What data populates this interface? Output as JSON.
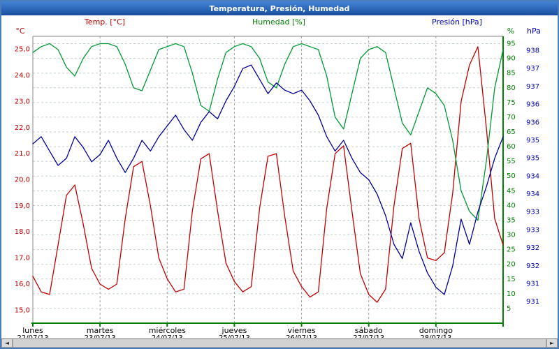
{
  "window": {
    "title": "Temperatura, Presión, Humedad"
  },
  "scrollbar": {
    "left_arrow": "◄",
    "right_arrow": "►"
  },
  "chart_data": {
    "type": "line",
    "title": "Temperatura, Presión, Humedad",
    "x_unit": "hours",
    "x_range": [
      0,
      168
    ],
    "step_hours": 3,
    "grid": "dashed",
    "legend_position": "top",
    "legend": [
      {
        "label": "Temp.  [°C]",
        "color": "#c00000"
      },
      {
        "label": "Humedad [%]",
        "color": "#008000"
      },
      {
        "label": "Presión [hPa]",
        "color": "#0000bb"
      }
    ],
    "axes": {
      "temp": {
        "unit": "°C",
        "color": "#c00000",
        "range": [
          14.5,
          25.5
        ],
        "ticks": [
          "25,0",
          "24,0",
          "23,0",
          "22,0",
          "21,0",
          "20,0",
          "19,0",
          "18,0",
          "17,0",
          "16,0",
          "15,0"
        ],
        "tick_start": 25.0,
        "tick_step": -1.0
      },
      "humidity": {
        "unit": "%",
        "color": "#008000",
        "range": [
          0,
          97.5
        ],
        "ticks": [
          "95",
          "90",
          "85",
          "80",
          "75",
          "70",
          "65",
          "60",
          "55",
          "50",
          "45",
          "40",
          "35",
          "30",
          "25",
          "20",
          "15",
          "10",
          "5"
        ],
        "tick_start": 95,
        "tick_step": -5
      },
      "pressure": {
        "unit": "hPa",
        "color": "#0000bb",
        "range": [
          930.4,
          938.4
        ],
        "ticks": [
          "938",
          "937",
          "937",
          "936",
          "936",
          "935",
          "935",
          "934",
          "934",
          "933",
          "933",
          "932",
          "932",
          "931",
          "931"
        ],
        "tick_start": 938.0,
        "tick_step": -0.5
      }
    },
    "days": [
      {
        "name": "lunes",
        "date": "22/07/13"
      },
      {
        "name": "martes",
        "date": "23/07/13"
      },
      {
        "name": "miércoles",
        "date": "24/07/13"
      },
      {
        "name": "jueves",
        "date": "25/07/13"
      },
      {
        "name": "viernes",
        "date": "26/07/13"
      },
      {
        "name": "sábado",
        "date": "27/07/13"
      },
      {
        "name": "domingo",
        "date": "28/07/13"
      }
    ],
    "series": [
      {
        "name": "Temperatura",
        "unit": "°C",
        "axis": "temp",
        "color": "#c00000",
        "values": [
          16.3,
          15.7,
          15.6,
          17.5,
          19.4,
          19.8,
          18.3,
          16.6,
          16.0,
          15.8,
          16.0,
          18.5,
          20.5,
          20.7,
          19.0,
          17.0,
          16.2,
          15.7,
          15.8,
          18.8,
          20.8,
          21.0,
          18.8,
          16.8,
          16.1,
          15.7,
          15.9,
          18.9,
          20.9,
          21.0,
          18.6,
          16.5,
          15.9,
          15.5,
          15.7,
          18.9,
          21.0,
          21.3,
          18.8,
          16.4,
          15.6,
          15.3,
          15.8,
          19.0,
          21.2,
          21.4,
          18.5,
          17.0,
          16.9,
          17.2,
          19.5,
          23.0,
          24.4,
          25.1,
          22.0,
          18.5,
          17.5
        ]
      },
      {
        "name": "Humedad",
        "unit": "%",
        "axis": "humidity",
        "color": "#009933",
        "values": [
          92,
          94,
          95,
          93,
          87,
          84,
          90,
          94,
          95,
          95,
          94,
          88,
          80,
          79,
          86,
          93,
          94,
          95,
          94,
          85,
          74,
          72,
          83,
          92,
          94,
          95,
          94,
          90,
          82,
          80,
          88,
          94,
          95,
          94,
          93,
          84,
          70,
          66,
          78,
          90,
          93,
          94,
          92,
          80,
          68,
          64,
          72,
          80,
          78,
          74,
          62,
          45,
          38,
          35,
          55,
          80,
          93
        ]
      },
      {
        "name": "Presión",
        "unit": "hPa",
        "axis": "pressure",
        "color": "#000099",
        "values": [
          935.4,
          935.6,
          935.2,
          934.8,
          935.0,
          935.6,
          935.3,
          934.9,
          935.1,
          935.5,
          935.0,
          934.6,
          935.0,
          935.5,
          935.2,
          935.6,
          935.9,
          936.2,
          935.8,
          935.5,
          936.0,
          936.3,
          936.1,
          936.6,
          937.0,
          937.5,
          937.6,
          937.2,
          936.8,
          937.1,
          936.9,
          936.8,
          936.9,
          936.6,
          936.2,
          935.6,
          935.2,
          935.5,
          935.0,
          934.6,
          934.4,
          934.0,
          933.4,
          932.6,
          932.2,
          933.2,
          932.4,
          931.8,
          931.4,
          931.2,
          932.0,
          933.3,
          932.6,
          933.5,
          934.2,
          935.0,
          935.6
        ]
      }
    ]
  }
}
